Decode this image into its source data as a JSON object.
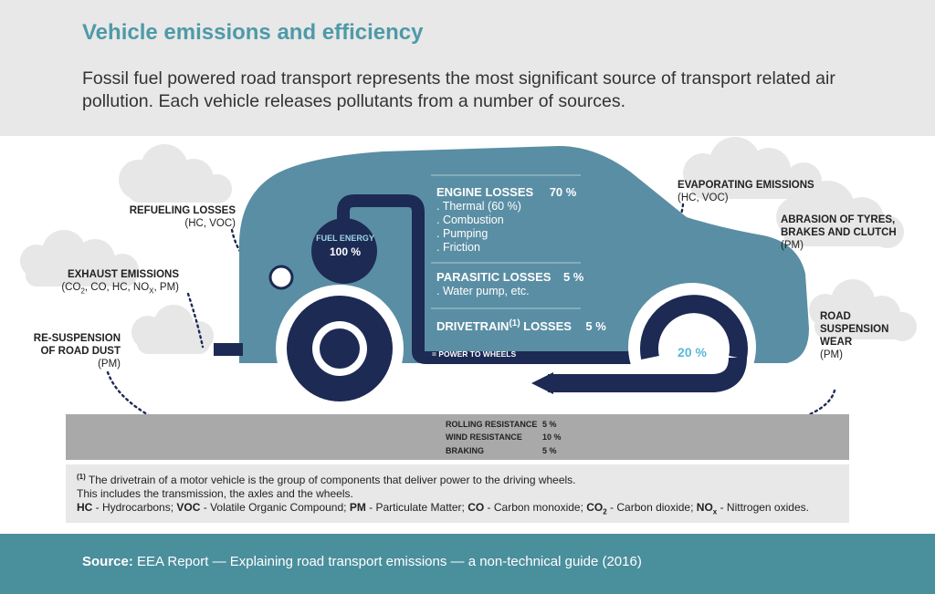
{
  "header": {
    "title": "Vehicle emissions and efficiency",
    "intro": "Fossil fuel powered road transport represents the most significant source of transport related air pollution. Each vehicle releases pollutants from a number of sources."
  },
  "car": {
    "fuel_label": "FUEL ENERGY",
    "fuel_value": "100 %",
    "engine_title": "ENGINE LOSSES",
    "engine_value": "70 %",
    "engine_items": [
      ". Thermal (60 %)",
      ". Combustion",
      ". Pumping",
      ". Friction"
    ],
    "parasitic_title": "PARASITIC LOSSES",
    "parasitic_value": "5 %",
    "parasitic_item": ". Water pump, etc.",
    "drivetrain_title": "DRIVETRAIN",
    "drivetrain_sup": "(1)",
    "drivetrain_suffix": "LOSSES",
    "drivetrain_value": "5 %",
    "power_label": "= POWER TO WHEELS",
    "wheels_value": "20 %"
  },
  "labels": {
    "refueling": {
      "title": "REFUELING LOSSES",
      "sub": "(HC, VOC)"
    },
    "exhaust": {
      "title": "EXHAUST EMISSIONS",
      "sub": "(CO2, CO, HC, NOX, PM)"
    },
    "resuspension": {
      "title1": "RE-SUSPENSION",
      "title2": "OF ROAD DUST",
      "sub": "(PM)"
    },
    "evaporating": {
      "title": "EVAPORATING EMISSIONS",
      "sub": "(HC, VOC)"
    },
    "abrasion": {
      "title1": "ABRASION OF TYRES,",
      "title2": "BRAKES AND CLUTCH",
      "sub": "(PM)"
    },
    "road": {
      "title1": "ROAD",
      "title2": "SUSPENSION",
      "title3": "WEAR",
      "sub": "(PM)"
    }
  },
  "resistance": [
    {
      "label": "ROLLING RESISTANCE",
      "value": "5 %"
    },
    {
      "label": "WIND RESISTANCE",
      "value": "10 %"
    },
    {
      "label": "BRAKING",
      "value": "5 %"
    }
  ],
  "notes": {
    "footnote_mark": "(1)",
    "footnote_line1": "The drivetrain of a motor vehicle is the group of components that deliver power to the driving wheels.",
    "footnote_line2": "This includes the transmission, the axles and the wheels.",
    "abbreviations": [
      {
        "abbr": "HC",
        "text": " - Hydrocarbons; "
      },
      {
        "abbr": "VOC",
        "text": " - Volatile Organic Compound; "
      },
      {
        "abbr": "PM",
        "text": " - Particulate Matter; "
      },
      {
        "abbr": "CO",
        "text": " - Carbon monoxide; "
      },
      {
        "abbr": "CO2",
        "text": " - Carbon dioxide; "
      },
      {
        "abbr": "NOx",
        "text": " - Nittrogen oxides."
      }
    ]
  },
  "footer": {
    "source_label": "Source:",
    "source_text": "EEA Report — Explaining road transport emissions — a non-technical guide (2016)"
  },
  "colors": {
    "car_body": "#5a8ea4",
    "navy": "#1c2a54",
    "teal_footer": "#4a8f9c",
    "title": "#4e9aa8",
    "smoke": "#e7e7e7",
    "road": "#a9a9a9"
  }
}
